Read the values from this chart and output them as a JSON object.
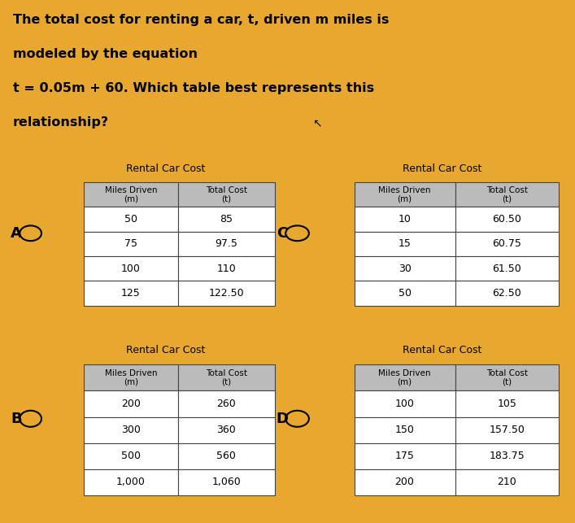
{
  "bg_color": "#E8A830",
  "question_bg": "#FFFFFF",
  "card_color": "#F5F5F5",
  "table_header_bg": "#BBBBBB",
  "question_lines": [
    "The total cost for renting a car, t, driven m miles is",
    "modeled by the equation",
    "t = 0.05m + 60. Which table best represents this",
    "relationship?"
  ],
  "tables": [
    {
      "label": "A",
      "title": "Rental Car Cost",
      "col1": "Miles Driven\n(m)",
      "col2": "Total Cost\n(t)",
      "rows": [
        [
          "50",
          "85"
        ],
        [
          "75",
          "97.5"
        ],
        [
          "100",
          "110"
        ],
        [
          "125",
          "122.50"
        ]
      ]
    },
    {
      "label": "C",
      "title": "Rental Car Cost",
      "col1": "Miles Driven\n(m)",
      "col2": "Total Cost\n(t)",
      "rows": [
        [
          "10",
          "60.50"
        ],
        [
          "15",
          "60.75"
        ],
        [
          "30",
          "61.50"
        ],
        [
          "50",
          "62.50"
        ]
      ]
    },
    {
      "label": "B",
      "title": "Rental Car Cost",
      "col1": "Miles Driven\n(m)",
      "col2": "Total Cost\n(t)",
      "rows": [
        [
          "200",
          "260"
        ],
        [
          "300",
          "360"
        ],
        [
          "500",
          "560"
        ],
        [
          "1,000",
          "1,060"
        ]
      ]
    },
    {
      "label": "D",
      "title": "Rental Car Cost",
      "col1": "Miles Driven\n(m)",
      "col2": "Total Cost\n(t)",
      "rows": [
        [
          "100",
          "105"
        ],
        [
          "150",
          "157.50"
        ],
        [
          "175",
          "183.75"
        ],
        [
          "200",
          "210"
        ]
      ]
    }
  ]
}
